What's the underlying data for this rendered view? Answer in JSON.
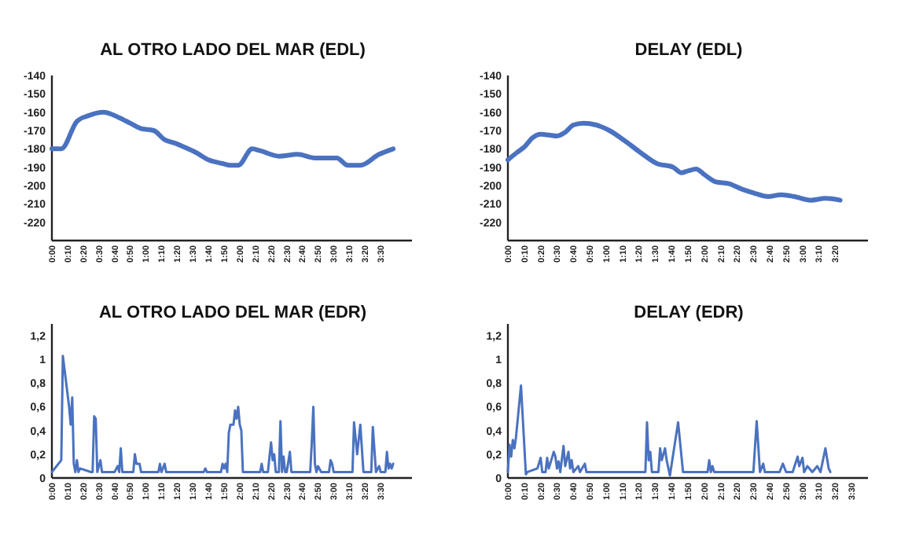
{
  "chart_data": [
    {
      "type": "line",
      "title": "AL OTRO LADO DEL MAR (EDL)",
      "x": [
        0,
        6,
        16,
        23,
        33,
        43,
        50,
        57,
        65,
        72,
        79,
        87,
        92,
        100,
        109,
        114,
        119,
        128,
        133,
        145,
        157,
        168,
        182,
        189,
        197,
        209,
        218
      ],
      "series": [
        {
          "color": "#4a72c0",
          "values": [
            -180,
            -180,
            -165,
            -162,
            -160,
            -163,
            -166,
            -169,
            -170,
            -175,
            -177,
            -180,
            -182,
            -186,
            -188,
            -189,
            -189,
            -180,
            -181,
            -184,
            -183,
            -185,
            -185,
            -189,
            -189,
            -183,
            -180
          ]
        }
      ],
      "xlim": [
        0,
        230
      ],
      "xticks": [
        {
          "value": 0,
          "label": "0:00"
        },
        {
          "value": 10,
          "label": "0:10"
        },
        {
          "value": 20,
          "label": "0:20"
        },
        {
          "value": 30,
          "label": "0:30"
        },
        {
          "value": 40,
          "label": "0:40"
        },
        {
          "value": 50,
          "label": "0:50"
        },
        {
          "value": 60,
          "label": "1:00"
        },
        {
          "value": 70,
          "label": "1:10"
        },
        {
          "value": 80,
          "label": "1:20"
        },
        {
          "value": 90,
          "label": "1:30"
        },
        {
          "value": 100,
          "label": "1:40"
        },
        {
          "value": 110,
          "label": "1:50"
        },
        {
          "value": 120,
          "label": "2:00"
        },
        {
          "value": 130,
          "label": "2:10"
        },
        {
          "value": 140,
          "label": "2:20"
        },
        {
          "value": 150,
          "label": "2:30"
        },
        {
          "value": 160,
          "label": "2:40"
        },
        {
          "value": 170,
          "label": "2:50"
        },
        {
          "value": 180,
          "label": "3:00"
        },
        {
          "value": 190,
          "label": "3:10"
        },
        {
          "value": 200,
          "label": "3:20"
        },
        {
          "value": 210,
          "label": "3:30"
        }
      ],
      "ylim": [
        -230,
        -140
      ],
      "yticks": [
        -140,
        -150,
        -160,
        -170,
        -180,
        -190,
        -200,
        -210,
        -220
      ],
      "grid": false
    },
    {
      "type": "line",
      "title": "DELAY (EDL)",
      "x": [
        0,
        5.5,
        10,
        15,
        20,
        30,
        35,
        40,
        46,
        54,
        62,
        72,
        81,
        91,
        101,
        106,
        110,
        115,
        120,
        127,
        135,
        143,
        150,
        159,
        167,
        175,
        185,
        194,
        203
      ],
      "series": [
        {
          "color": "#4a72c0",
          "values": [
            -186,
            -182,
            -179,
            -174,
            -172,
            -173,
            -171,
            -167,
            -166,
            -167,
            -170,
            -176,
            -182,
            -188,
            -190,
            -193,
            -192,
            -191,
            -194,
            -198,
            -199,
            -202,
            -204,
            -206,
            -205,
            -206,
            -208,
            -207,
            -208
          ]
        }
      ],
      "xlim": [
        0,
        220
      ],
      "xticks": [
        {
          "value": 0,
          "label": "0:00"
        },
        {
          "value": 10,
          "label": "0:10"
        },
        {
          "value": 20,
          "label": "0:20"
        },
        {
          "value": 30,
          "label": "0:30"
        },
        {
          "value": 40,
          "label": "0:40"
        },
        {
          "value": 50,
          "label": "0:50"
        },
        {
          "value": 60,
          "label": "1:00"
        },
        {
          "value": 70,
          "label": "1:10"
        },
        {
          "value": 80,
          "label": "1:20"
        },
        {
          "value": 90,
          "label": "1:30"
        },
        {
          "value": 100,
          "label": "1:40"
        },
        {
          "value": 110,
          "label": "1:50"
        },
        {
          "value": 120,
          "label": "2:00"
        },
        {
          "value": 130,
          "label": "2:10"
        },
        {
          "value": 140,
          "label": "2:20"
        },
        {
          "value": 150,
          "label": "2:30"
        },
        {
          "value": 160,
          "label": "2:40"
        },
        {
          "value": 170,
          "label": "2:50"
        },
        {
          "value": 180,
          "label": "3:00"
        },
        {
          "value": 190,
          "label": "3:10"
        },
        {
          "value": 200,
          "label": "3:20"
        }
      ],
      "ylim": [
        -230,
        -140
      ],
      "yticks": [
        -140,
        -150,
        -160,
        -170,
        -180,
        -190,
        -200,
        -210,
        -220
      ],
      "grid": false
    },
    {
      "type": "line",
      "title": "AL OTRO LADO DEL MAR (EDR)",
      "x": [
        0,
        6,
        7,
        11,
        12,
        13,
        14,
        15,
        16,
        17,
        18,
        25,
        26,
        27,
        28,
        29,
        31,
        32,
        40,
        42,
        43,
        44,
        45,
        52,
        53,
        54,
        56,
        57,
        68,
        69,
        70,
        72,
        73,
        97,
        98,
        99,
        108,
        109,
        110,
        111,
        112,
        113,
        114,
        116,
        117,
        118,
        119,
        120,
        121,
        122,
        133,
        134,
        135,
        138,
        139,
        140,
        141,
        142,
        143,
        145,
        146,
        147,
        148,
        149,
        150,
        152,
        153,
        165,
        166,
        167,
        168,
        169,
        170,
        172,
        177,
        178,
        179,
        180,
        192,
        193,
        195,
        197,
        199,
        204,
        205,
        207,
        209,
        210,
        213,
        214,
        215,
        216,
        217,
        218
      ],
      "series": [
        {
          "color": "#4a72c0",
          "values": [
            0.05,
            0.15,
            1.03,
            0.6,
            0.45,
            0.68,
            0.12,
            0.05,
            0.15,
            0.05,
            0.08,
            0.05,
            0.05,
            0.52,
            0.5,
            0.05,
            0.15,
            0.05,
            0.05,
            0.1,
            0.05,
            0.25,
            0.05,
            0.05,
            0.2,
            0.12,
            0.12,
            0.05,
            0.05,
            0.12,
            0.05,
            0.12,
            0.05,
            0.05,
            0.08,
            0.05,
            0.05,
            0.12,
            0.08,
            0.12,
            0.05,
            0.38,
            0.45,
            0.45,
            0.57,
            0.5,
            0.6,
            0.45,
            0.4,
            0.05,
            0.05,
            0.12,
            0.05,
            0.05,
            0.18,
            0.3,
            0.15,
            0.2,
            0.05,
            0.05,
            0.48,
            0.05,
            0.18,
            0.05,
            0.05,
            0.22,
            0.05,
            0.05,
            0.3,
            0.6,
            0.12,
            0.05,
            0.1,
            0.05,
            0.05,
            0.15,
            0.12,
            0.05,
            0.05,
            0.47,
            0.2,
            0.45,
            0.05,
            0.05,
            0.43,
            0.05,
            0.1,
            0.05,
            0.05,
            0.22,
            0.08,
            0.12,
            0.08,
            0.12
          ]
        }
      ],
      "xlim": [
        0,
        230
      ],
      "xticks": [
        {
          "value": 0,
          "label": "0:00"
        },
        {
          "value": 10,
          "label": "0:10"
        },
        {
          "value": 20,
          "label": "0:20"
        },
        {
          "value": 30,
          "label": "0:30"
        },
        {
          "value": 40,
          "label": "0:40"
        },
        {
          "value": 50,
          "label": "0:50"
        },
        {
          "value": 60,
          "label": "1:00"
        },
        {
          "value": 70,
          "label": "1:10"
        },
        {
          "value": 80,
          "label": "1:20"
        },
        {
          "value": 90,
          "label": "1:30"
        },
        {
          "value": 100,
          "label": "1:40"
        },
        {
          "value": 110,
          "label": "1:50"
        },
        {
          "value": 120,
          "label": "2:00"
        },
        {
          "value": 130,
          "label": "2:10"
        },
        {
          "value": 140,
          "label": "2:20"
        },
        {
          "value": 150,
          "label": "2:30"
        },
        {
          "value": 160,
          "label": "2:40"
        },
        {
          "value": 170,
          "label": "2:50"
        },
        {
          "value": 180,
          "label": "3:00"
        },
        {
          "value": 190,
          "label": "3:10"
        },
        {
          "value": 200,
          "label": "3:20"
        },
        {
          "value": 210,
          "label": "3:30"
        }
      ],
      "ylim": [
        0,
        1.3
      ],
      "yticks": [
        0,
        {
          "value": 0.2,
          "label": "0,2"
        },
        {
          "value": 0.4,
          "label": "0,4"
        },
        {
          "value": 0.6,
          "label": "0,6"
        },
        {
          "value": 0.8,
          "label": "0,8"
        },
        1,
        {
          "value": 1.2,
          "label": "1,2"
        }
      ],
      "grid": false
    },
    {
      "type": "line",
      "title": "DELAY (EDR)",
      "x": [
        0,
        1,
        2,
        3,
        4,
        5,
        8,
        11,
        12,
        18,
        20,
        21,
        23,
        24,
        25,
        28,
        29,
        30,
        31,
        32,
        34,
        35,
        37,
        38,
        39,
        40,
        43,
        44,
        47,
        48,
        84,
        85,
        86,
        87,
        88,
        92,
        93,
        94,
        96,
        97,
        99,
        101,
        104,
        107,
        122,
        123,
        124,
        125,
        126,
        150,
        152,
        154,
        156,
        157,
        166,
        168,
        170,
        174,
        177,
        178,
        180,
        181,
        183,
        186,
        189,
        191,
        194,
        196,
        197
      ],
      "series": [
        {
          "color": "#4a72c0",
          "values": [
            0.05,
            0.28,
            0.18,
            0.32,
            0.25,
            0.35,
            0.78,
            0.03,
            0.05,
            0.08,
            0.17,
            0.05,
            0.05,
            0.17,
            0.08,
            0.22,
            0.18,
            0.08,
            0.14,
            0.05,
            0.27,
            0.1,
            0.22,
            0.08,
            0.15,
            0.05,
            0.1,
            0.05,
            0.12,
            0.05,
            0.05,
            0.47,
            0.15,
            0.22,
            0.05,
            0.05,
            0.25,
            0.15,
            0.25,
            0.15,
            0.02,
            0.2,
            0.47,
            0.05,
            0.05,
            0.15,
            0.05,
            0.1,
            0.05,
            0.05,
            0.48,
            0.05,
            0.12,
            0.05,
            0.05,
            0.12,
            0.05,
            0.05,
            0.18,
            0.1,
            0.17,
            0.05,
            0.1,
            0.05,
            0.1,
            0.05,
            0.25,
            0.08,
            0.05
          ]
        }
      ],
      "xlim": [
        0,
        220
      ],
      "xticks": [
        {
          "value": 0,
          "label": "0:00"
        },
        {
          "value": 10,
          "label": "0:10"
        },
        {
          "value": 20,
          "label": "0:20"
        },
        {
          "value": 30,
          "label": "0:30"
        },
        {
          "value": 40,
          "label": "0:40"
        },
        {
          "value": 50,
          "label": "0:50"
        },
        {
          "value": 60,
          "label": "1:00"
        },
        {
          "value": 70,
          "label": "1:10"
        },
        {
          "value": 80,
          "label": "1:20"
        },
        {
          "value": 90,
          "label": "1:30"
        },
        {
          "value": 100,
          "label": "1:40"
        },
        {
          "value": 110,
          "label": "1:50"
        },
        {
          "value": 120,
          "label": "2:00"
        },
        {
          "value": 130,
          "label": "2:10"
        },
        {
          "value": 140,
          "label": "2:20"
        },
        {
          "value": 150,
          "label": "2:30"
        },
        {
          "value": 160,
          "label": "2:40"
        },
        {
          "value": 170,
          "label": "2:50"
        },
        {
          "value": 180,
          "label": "3:00"
        },
        {
          "value": 190,
          "label": "3:10"
        },
        {
          "value": 200,
          "label": "3:20"
        },
        {
          "value": 210,
          "label": "3:30"
        }
      ],
      "ylim": [
        0,
        1.3
      ],
      "yticks": [
        0,
        {
          "value": 0.2,
          "label": "0,2"
        },
        {
          "value": 0.4,
          "label": "0,4"
        },
        {
          "value": 0.6,
          "label": "0,6"
        },
        {
          "value": 0.8,
          "label": "0,8"
        },
        1,
        {
          "value": 1.2,
          "label": "1,2"
        }
      ],
      "grid": false
    }
  ]
}
